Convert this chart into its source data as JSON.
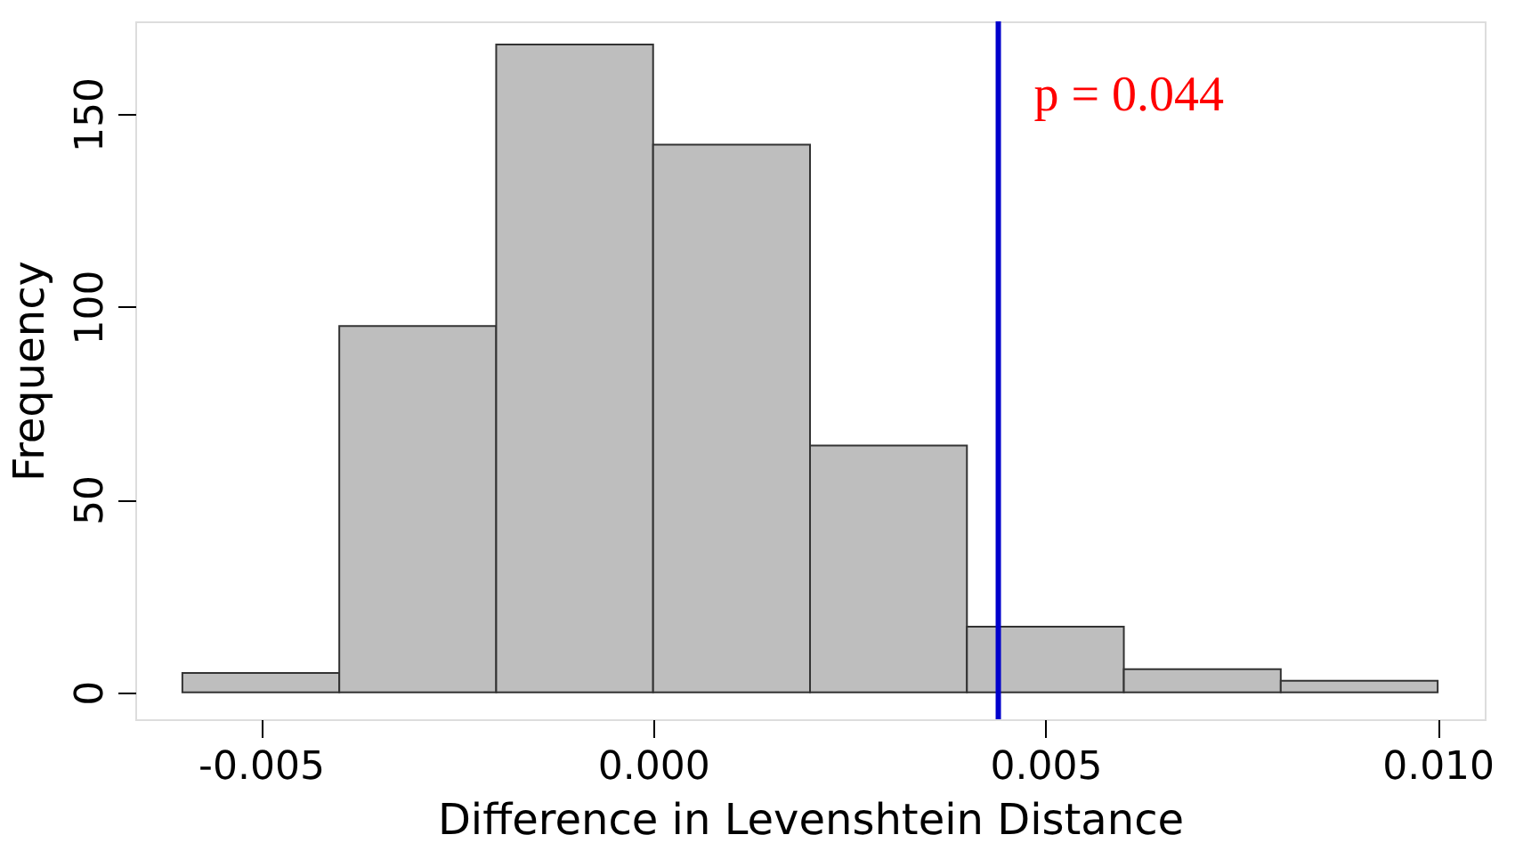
{
  "chart_data": {
    "type": "histogram",
    "xlabel": "Difference in Levenshtein Distance",
    "ylabel": "Frequency",
    "bins": [
      -0.006,
      -0.004,
      -0.002,
      0.0,
      0.002,
      0.004,
      0.006,
      0.008,
      0.01
    ],
    "values": [
      5,
      95,
      168,
      142,
      64,
      17,
      6,
      3
    ],
    "color": "#bebebe",
    "xlim": [
      -0.0066,
      0.0106
    ],
    "ylim": [
      -7,
      174
    ],
    "xticks": [
      {
        "value": -0.005,
        "label": "-0.005"
      },
      {
        "value": 0.0,
        "label": "0.000"
      },
      {
        "value": 0.005,
        "label": "0.005"
      },
      {
        "value": 0.01,
        "label": "0.010"
      }
    ],
    "yticks": [
      0,
      50,
      100,
      150
    ],
    "grid": false,
    "annotations": [
      "p = 0.044"
    ],
    "ref_lines": [
      {
        "axis": "x",
        "value": 0.0044,
        "color": "#0000cc"
      }
    ]
  }
}
